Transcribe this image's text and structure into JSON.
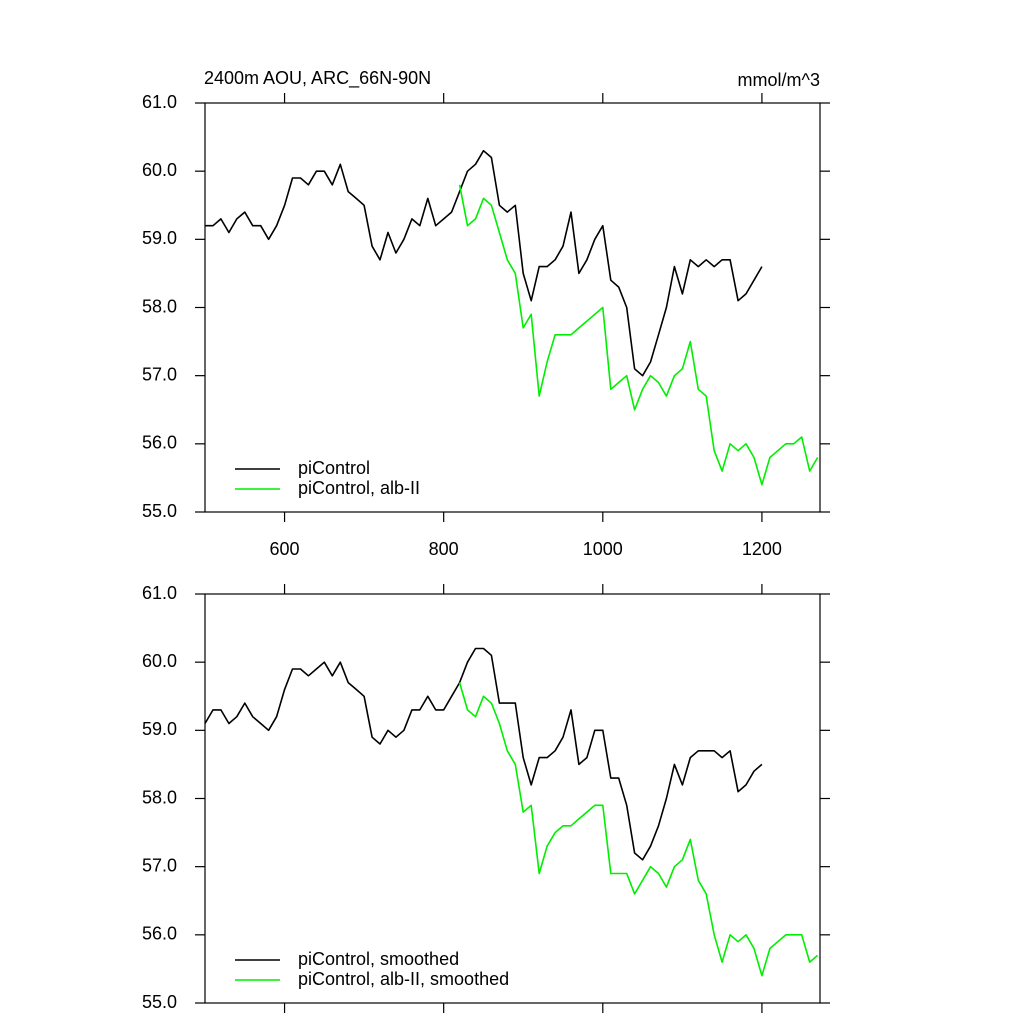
{
  "chart_data": [
    {
      "type": "line",
      "title": "2400m AOU, ARC_66N-90N",
      "units_label": "mmol/m^3",
      "x": [
        500,
        510,
        520,
        530,
        540,
        550,
        560,
        570,
        580,
        590,
        600,
        610,
        620,
        630,
        640,
        650,
        660,
        670,
        680,
        690,
        700,
        710,
        720,
        730,
        740,
        750,
        760,
        770,
        780,
        790,
        800,
        810,
        820,
        830,
        840,
        850,
        860,
        870,
        880,
        890,
        900,
        910,
        920,
        930,
        940,
        950,
        960,
        970,
        980,
        990,
        1000,
        1010,
        1020,
        1030,
        1040,
        1050,
        1060,
        1070,
        1080,
        1090,
        1100,
        1110,
        1120,
        1130,
        1140,
        1150,
        1160,
        1170,
        1180,
        1190,
        1200,
        1210,
        1220,
        1230,
        1240,
        1250,
        1260,
        1270
      ],
      "series": [
        {
          "name": "piControl",
          "color": "#000000",
          "values": [
            59.2,
            59.2,
            59.3,
            59.1,
            59.3,
            59.4,
            59.2,
            59.2,
            59.0,
            59.2,
            59.5,
            59.9,
            59.9,
            59.8,
            60.0,
            60.0,
            59.8,
            60.1,
            59.7,
            59.6,
            59.5,
            58.9,
            58.7,
            59.1,
            58.8,
            59.0,
            59.3,
            59.2,
            59.6,
            59.2,
            59.3,
            59.4,
            59.7,
            60.0,
            60.1,
            60.3,
            60.2,
            59.5,
            59.4,
            59.5,
            58.5,
            58.1,
            58.6,
            58.6,
            58.7,
            58.9,
            59.4,
            58.5,
            58.7,
            59.0,
            59.2,
            58.4,
            58.3,
            58.0,
            57.1,
            57.0,
            57.2,
            57.6,
            58.0,
            58.6,
            58.2,
            58.7,
            58.6,
            58.7,
            58.6,
            58.7,
            58.7,
            58.1,
            58.2,
            58.4,
            58.6,
            null,
            null,
            null,
            null,
            null,
            null,
            null
          ]
        },
        {
          "name": "piControl, alb-II",
          "color": "#00ee00",
          "values": [
            null,
            null,
            null,
            null,
            null,
            null,
            null,
            null,
            null,
            null,
            null,
            null,
            null,
            null,
            null,
            null,
            null,
            null,
            null,
            null,
            null,
            null,
            null,
            null,
            null,
            null,
            null,
            null,
            null,
            null,
            null,
            null,
            59.8,
            59.2,
            59.3,
            59.6,
            59.5,
            59.1,
            58.7,
            58.5,
            57.7,
            57.9,
            56.7,
            57.2,
            57.6,
            57.6,
            57.6,
            57.7,
            57.8,
            57.9,
            58.0,
            56.8,
            56.9,
            57.0,
            56.5,
            56.8,
            57.0,
            56.9,
            56.7,
            57.0,
            57.1,
            57.5,
            56.8,
            56.7,
            55.9,
            55.6,
            56.0,
            55.9,
            56.0,
            55.8,
            55.4,
            55.8,
            55.9,
            56.0,
            56.0,
            56.1,
            55.6,
            55.8
          ]
        }
      ],
      "xlim": [
        500,
        1273
      ],
      "xticks": [
        600,
        800,
        1000,
        1200
      ],
      "ylim": [
        55,
        61
      ],
      "yticks": [
        {
          "value": 55,
          "label": "55.0"
        },
        {
          "value": 56,
          "label": "56.0"
        },
        {
          "value": 57,
          "label": "57.0"
        },
        {
          "value": 58,
          "label": "58.0"
        },
        {
          "value": 59,
          "label": "59.0"
        },
        {
          "value": 60,
          "label": "60.0"
        },
        {
          "value": 61,
          "label": "61.0"
        }
      ],
      "legend": "lower left"
    },
    {
      "type": "line",
      "x": [
        500,
        510,
        520,
        530,
        540,
        550,
        560,
        570,
        580,
        590,
        600,
        610,
        620,
        630,
        640,
        650,
        660,
        670,
        680,
        690,
        700,
        710,
        720,
        730,
        740,
        750,
        760,
        770,
        780,
        790,
        800,
        810,
        820,
        830,
        840,
        850,
        860,
        870,
        880,
        890,
        900,
        910,
        920,
        930,
        940,
        950,
        960,
        970,
        980,
        990,
        1000,
        1010,
        1020,
        1030,
        1040,
        1050,
        1060,
        1070,
        1080,
        1090,
        1100,
        1110,
        1120,
        1130,
        1140,
        1150,
        1160,
        1170,
        1180,
        1190,
        1200,
        1210,
        1220,
        1230,
        1240,
        1250,
        1260,
        1270
      ],
      "series": [
        {
          "name": "piControl, smoothed",
          "color": "#000000",
          "values": [
            59.1,
            59.3,
            59.3,
            59.1,
            59.2,
            59.4,
            59.2,
            59.1,
            59.0,
            59.2,
            59.6,
            59.9,
            59.9,
            59.8,
            59.9,
            60.0,
            59.8,
            60.0,
            59.7,
            59.6,
            59.5,
            58.9,
            58.8,
            59.0,
            58.9,
            59.0,
            59.3,
            59.3,
            59.5,
            59.3,
            59.3,
            59.5,
            59.7,
            60.0,
            60.2,
            60.2,
            60.1,
            59.4,
            59.4,
            59.4,
            58.6,
            58.2,
            58.6,
            58.6,
            58.7,
            58.9,
            59.3,
            58.5,
            58.6,
            59.0,
            59.0,
            58.3,
            58.3,
            57.9,
            57.2,
            57.1,
            57.3,
            57.6,
            58.0,
            58.5,
            58.2,
            58.6,
            58.7,
            58.7,
            58.7,
            58.6,
            58.7,
            58.1,
            58.2,
            58.4,
            58.5,
            null,
            null,
            null,
            null,
            null,
            null,
            null
          ]
        },
        {
          "name": "piControl, alb-II, smoothed",
          "color": "#00ee00",
          "values": [
            null,
            null,
            null,
            null,
            null,
            null,
            null,
            null,
            null,
            null,
            null,
            null,
            null,
            null,
            null,
            null,
            null,
            null,
            null,
            null,
            null,
            null,
            null,
            null,
            null,
            null,
            null,
            null,
            null,
            null,
            null,
            null,
            59.7,
            59.3,
            59.2,
            59.5,
            59.4,
            59.1,
            58.7,
            58.5,
            57.8,
            57.9,
            56.9,
            57.3,
            57.5,
            57.6,
            57.6,
            57.7,
            57.8,
            57.9,
            57.9,
            56.9,
            56.9,
            56.9,
            56.6,
            56.8,
            57.0,
            56.9,
            56.7,
            57.0,
            57.1,
            57.4,
            56.8,
            56.6,
            56.0,
            55.6,
            56.0,
            55.9,
            56.0,
            55.8,
            55.4,
            55.8,
            55.9,
            56.0,
            56.0,
            56.0,
            55.6,
            55.7
          ]
        }
      ],
      "xlim": [
        500,
        1273
      ],
      "ylim": [
        55,
        61
      ],
      "yticks": [
        {
          "value": 55,
          "label": "55.0"
        },
        {
          "value": 56,
          "label": "56.0"
        },
        {
          "value": 57,
          "label": "57.0"
        },
        {
          "value": 58,
          "label": "58.0"
        },
        {
          "value": 59,
          "label": "59.0"
        },
        {
          "value": 60,
          "label": "60.0"
        },
        {
          "value": 61,
          "label": "61.0"
        }
      ],
      "legend": "lower left"
    }
  ]
}
